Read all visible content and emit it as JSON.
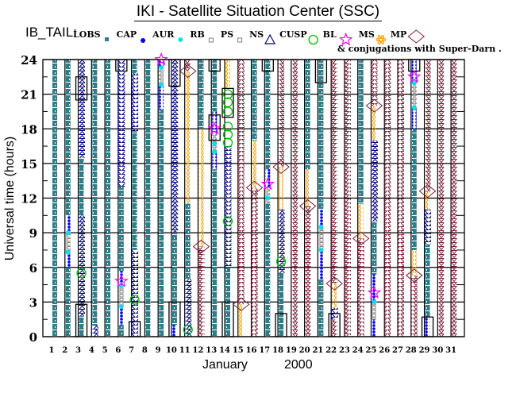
{
  "title": "IKI - Satellite Situation Center (SSC)",
  "legend": {
    "prefix": "IB_TAIL:",
    "items": [
      {
        "label": "LOBS",
        "type": "LOBS"
      },
      {
        "label": "CAP",
        "type": "CAP"
      },
      {
        "label": "AUR",
        "type": "AUR"
      },
      {
        "label": "RB",
        "type": "RB"
      },
      {
        "label": "PS",
        "type": "PS"
      },
      {
        "label": "NS",
        "type": "NS"
      },
      {
        "label": "CUSP",
        "type": "CUSP"
      },
      {
        "label": "BL",
        "type": "BL"
      },
      {
        "label": "MS",
        "type": "MS"
      },
      {
        "label": "MP",
        "type": "MP"
      }
    ],
    "conjugation_note": "& conjugations with Super-Darn ."
  },
  "colors": {
    "LOBS": "#2f7d88",
    "CAP": "#0000ff",
    "AUR": "#00e0f0",
    "RB": "#808080",
    "PS": "#808080",
    "NS": "#000080",
    "CUSP": "#00c000",
    "BL": "#ff00ff",
    "MS": "#ffa500",
    "MP": "#7a1f35"
  },
  "chart_data": {
    "type": "timeline",
    "ylabel": "Universal time (hours)",
    "xlabel_month": "January",
    "xlabel_year": "2000",
    "ylim": [
      0,
      24
    ],
    "yticks": [
      "0",
      "3",
      "6",
      "9",
      "12",
      "15",
      "18",
      "21",
      "24"
    ],
    "xticks": [
      "1",
      "2",
      "3",
      "4",
      "5",
      "6",
      "7",
      "8",
      "9",
      "10",
      "11",
      "12",
      "13",
      "14",
      "15",
      "16",
      "17",
      "18",
      "19",
      "20",
      "21",
      "22",
      "23",
      "24",
      "25",
      "26",
      "27",
      "28",
      "29",
      "30",
      "31"
    ],
    "grid": true,
    "days": [
      {
        "day": 1,
        "segments": [
          [
            "LOBS",
            0,
            24
          ]
        ],
        "points": [],
        "boxes": []
      },
      {
        "day": 2,
        "segments": [
          [
            "LOBS",
            0,
            6
          ],
          [
            "CAP",
            6,
            7.2
          ],
          [
            "RB",
            7.2,
            9
          ],
          [
            "CAP",
            9,
            10.5
          ],
          [
            "LOBS",
            10.5,
            24
          ]
        ],
        "points": [
          [
            "AUR",
            7.3
          ],
          [
            "AUR",
            9
          ]
        ],
        "boxes": []
      },
      {
        "day": 3,
        "segments": [
          [
            "LOBS",
            0,
            1.8
          ],
          [
            "NS",
            1.8,
            10.5
          ],
          [
            "LOBS",
            10.5,
            15.5
          ],
          [
            "NS",
            15.5,
            24
          ]
        ],
        "points": [
          [
            "CUSP",
            5.5
          ]
        ],
        "boxes": [
          [
            0,
            2.8
          ],
          [
            20.5,
            22.5
          ]
        ]
      },
      {
        "day": 4,
        "segments": [
          [
            "NS",
            0,
            1
          ],
          [
            "LOBS",
            1,
            24
          ]
        ],
        "points": [],
        "boxes": []
      },
      {
        "day": 5,
        "segments": [
          [
            "LOBS",
            0,
            24
          ]
        ],
        "points": [],
        "boxes": []
      },
      {
        "day": 6,
        "segments": [
          [
            "LOBS",
            0,
            1
          ],
          [
            "CAP",
            1,
            2.6
          ],
          [
            "RB",
            2.6,
            4.3
          ],
          [
            "CAP",
            4.3,
            5.7
          ],
          [
            "LOBS",
            5.7,
            13
          ],
          [
            "NS",
            13,
            24
          ]
        ],
        "points": [
          [
            "AUR",
            2.6
          ],
          [
            "AUR",
            4.4
          ],
          [
            "BL",
            4.8
          ]
        ],
        "boxes": [
          [
            23,
            24
          ]
        ]
      },
      {
        "day": 7,
        "segments": [
          [
            "NS",
            0,
            7.5
          ],
          [
            "LOBS",
            7.5,
            17.8
          ],
          [
            "NS",
            17.8,
            22.8
          ],
          [
            "LOBS",
            22.8,
            24
          ]
        ],
        "points": [
          [
            "CUSP",
            3.2
          ]
        ],
        "boxes": [
          [
            0,
            1.3
          ]
        ]
      },
      {
        "day": 8,
        "segments": [
          [
            "LOBS",
            0,
            24
          ]
        ],
        "points": [],
        "boxes": []
      },
      {
        "day": 9,
        "segments": [
          [
            "LOBS",
            0,
            19.7
          ],
          [
            "CAP",
            19.7,
            21.8
          ],
          [
            "RB",
            21.8,
            23.3
          ],
          [
            "CAP",
            23.3,
            24
          ]
        ],
        "points": [
          [
            "AUR",
            21.8
          ],
          [
            "AUR",
            23.3
          ],
          [
            "BL",
            24
          ]
        ],
        "boxes": []
      },
      {
        "day": 10,
        "segments": [
          [
            "CAP",
            0,
            1
          ],
          [
            "LOBS",
            1,
            9
          ],
          [
            "NS",
            9,
            24
          ]
        ],
        "points": [],
        "boxes": [
          [
            0,
            3
          ],
          [
            21.7,
            24
          ]
        ]
      },
      {
        "day": 11,
        "segments": [
          [
            "NS",
            0,
            5
          ],
          [
            "LOBS",
            5,
            11.5
          ],
          [
            "MS",
            11.5,
            23
          ],
          [
            "MP",
            23,
            24
          ]
        ],
        "points": [
          [
            "CUSP",
            0.6
          ],
          [
            "MPX",
            23
          ]
        ],
        "boxes": []
      },
      {
        "day": 12,
        "segments": [
          [
            "MP",
            0,
            7.8
          ],
          [
            "MS",
            7.8,
            18
          ],
          [
            "LOBS",
            18,
            24
          ]
        ],
        "points": [
          [
            "MPX",
            7.8
          ]
        ],
        "boxes": []
      },
      {
        "day": 13,
        "segments": [
          [
            "LOBS",
            0,
            14.5
          ],
          [
            "CAP",
            14.5,
            16
          ],
          [
            "RB",
            16,
            17.5
          ],
          [
            "CAP",
            17.5,
            19.5
          ],
          [
            "LOBS",
            19.5,
            24
          ]
        ],
        "points": [
          [
            "AUR",
            16
          ],
          [
            "AUR",
            16.7
          ],
          [
            "BL",
            18
          ]
        ],
        "boxes": [
          [
            17,
            19.2
          ],
          [
            23,
            24
          ]
        ]
      },
      {
        "day": 14,
        "segments": [
          [
            "LOBS",
            0,
            6
          ],
          [
            "NS",
            6,
            16.5
          ],
          [
            "MS",
            21.5,
            24
          ]
        ],
        "points": [
          [
            "CUSP",
            10
          ],
          [
            "CUSP",
            16.8
          ],
          [
            "CUSP",
            17.5
          ],
          [
            "CUSP",
            18.2
          ],
          [
            "CUSP",
            19.5
          ],
          [
            "CUSP",
            20.3
          ],
          [
            "CUSP",
            21
          ]
        ],
        "boxes": [
          [
            0,
            3
          ],
          [
            19,
            21.5
          ]
        ]
      },
      {
        "day": 15,
        "segments": [
          [
            "MS",
            0,
            2.8
          ],
          [
            "MP",
            2.8,
            24
          ]
        ],
        "points": [
          [
            "MPX",
            2.8
          ]
        ],
        "boxes": []
      },
      {
        "day": 16,
        "segments": [
          [
            "MP",
            0,
            12.9
          ],
          [
            "MS",
            12.9,
            17
          ],
          [
            "LOBS",
            17,
            24
          ]
        ],
        "points": [
          [
            "MPX",
            12.9
          ]
        ],
        "boxes": []
      },
      {
        "day": 17,
        "segments": [
          [
            "LOBS",
            0,
            11.5
          ],
          [
            "RB",
            11.5,
            13
          ],
          [
            "CAP",
            13,
            14.5
          ],
          [
            "LOBS",
            14.5,
            24
          ]
        ],
        "points": [
          [
            "AUR",
            12
          ],
          [
            "BL",
            13.2
          ]
        ],
        "boxes": [
          [
            23,
            24
          ]
        ]
      },
      {
        "day": 18,
        "segments": [
          [
            "LOBS",
            0,
            5.5
          ],
          [
            "NS",
            5.5,
            11
          ],
          [
            "MS",
            11,
            14.7
          ],
          [
            "MP",
            14.7,
            24
          ]
        ],
        "points": [
          [
            "CUSP",
            6.5
          ],
          [
            "MPX",
            14.7
          ]
        ],
        "boxes": [
          [
            0,
            2
          ]
        ]
      },
      {
        "day": 19,
        "segments": [
          [
            "MP",
            0,
            24
          ]
        ],
        "points": [],
        "boxes": []
      },
      {
        "day": 20,
        "segments": [
          [
            "MP",
            0,
            11.3
          ],
          [
            "MS",
            11.3,
            14.5
          ],
          [
            "LOBS",
            14.5,
            24
          ]
        ],
        "points": [
          [
            "MPX",
            11.3
          ]
        ],
        "boxes": []
      },
      {
        "day": 21,
        "segments": [
          [
            "LOBS",
            0,
            5
          ],
          [
            "CAP",
            5,
            7.5
          ],
          [
            "RB",
            7.5,
            9.5
          ],
          [
            "CAP",
            9.5,
            11
          ],
          [
            "LOBS",
            11,
            24
          ]
        ],
        "points": [
          [
            "AUR",
            7.5
          ],
          [
            "AUR",
            9.5
          ]
        ],
        "boxes": [
          [
            22,
            24
          ]
        ]
      },
      {
        "day": 22,
        "segments": [
          [
            "MP",
            0,
            1.5
          ],
          [
            "NS",
            1.5,
            2.5
          ],
          [
            "MS",
            2.5,
            4.6
          ],
          [
            "MP",
            4.6,
            24
          ]
        ],
        "points": [
          [
            "MPX",
            4.6
          ]
        ],
        "boxes": [
          [
            0,
            2
          ]
        ]
      },
      {
        "day": 23,
        "segments": [
          [
            "MP",
            0,
            24
          ]
        ],
        "points": [],
        "boxes": []
      },
      {
        "day": 24,
        "segments": [
          [
            "MP",
            0,
            8.5
          ],
          [
            "MS",
            8.5,
            11.5
          ],
          [
            "LOBS",
            11.5,
            24
          ]
        ],
        "points": [
          [
            "MPX",
            8.5
          ]
        ],
        "boxes": []
      },
      {
        "day": 25,
        "segments": [
          [
            "CAP",
            0,
            1.5
          ],
          [
            "RB",
            1.5,
            3
          ],
          [
            "CAP",
            3,
            5.4
          ],
          [
            "LOBS",
            5.4,
            10
          ],
          [
            "NS",
            10,
            17
          ],
          [
            "MS",
            17,
            20
          ],
          [
            "MP",
            20,
            24
          ]
        ],
        "points": [
          [
            "AUR",
            3
          ],
          [
            "BL",
            3.8
          ],
          [
            "MPX",
            20
          ]
        ],
        "boxes": []
      },
      {
        "day": 26,
        "segments": [
          [
            "MP",
            0,
            24
          ]
        ],
        "points": [],
        "boxes": []
      },
      {
        "day": 27,
        "segments": [
          [
            "MP",
            0,
            24
          ]
        ],
        "points": [],
        "boxes": []
      },
      {
        "day": 28,
        "segments": [
          [
            "MP",
            0,
            5.3
          ],
          [
            "MS",
            5.3,
            7.5
          ],
          [
            "LOBS",
            7.5,
            18
          ],
          [
            "CAP",
            18,
            19.8
          ],
          [
            "RB",
            19.8,
            22
          ],
          [
            "CAP",
            22,
            24
          ]
        ],
        "points": [
          [
            "AUR",
            19.8
          ],
          [
            "AUR",
            22
          ],
          [
            "BL",
            22.5
          ],
          [
            "MPX",
            5.3
          ]
        ],
        "boxes": [
          [
            23,
            24
          ]
        ]
      },
      {
        "day": 29,
        "segments": [
          [
            "CAP",
            0,
            1.7
          ],
          [
            "LOBS",
            1.7,
            8
          ],
          [
            "NS",
            8,
            11
          ],
          [
            "MS",
            11,
            12.6
          ],
          [
            "MP",
            12.6,
            24
          ]
        ],
        "points": [
          [
            "MPX",
            12.6
          ]
        ],
        "boxes": [
          [
            0,
            1.7
          ]
        ]
      },
      {
        "day": 30,
        "segments": [
          [
            "MP",
            0,
            24
          ]
        ],
        "points": [],
        "boxes": []
      },
      {
        "day": 31,
        "segments": [
          [
            "MP",
            0,
            24
          ]
        ],
        "points": [],
        "boxes": []
      }
    ]
  }
}
